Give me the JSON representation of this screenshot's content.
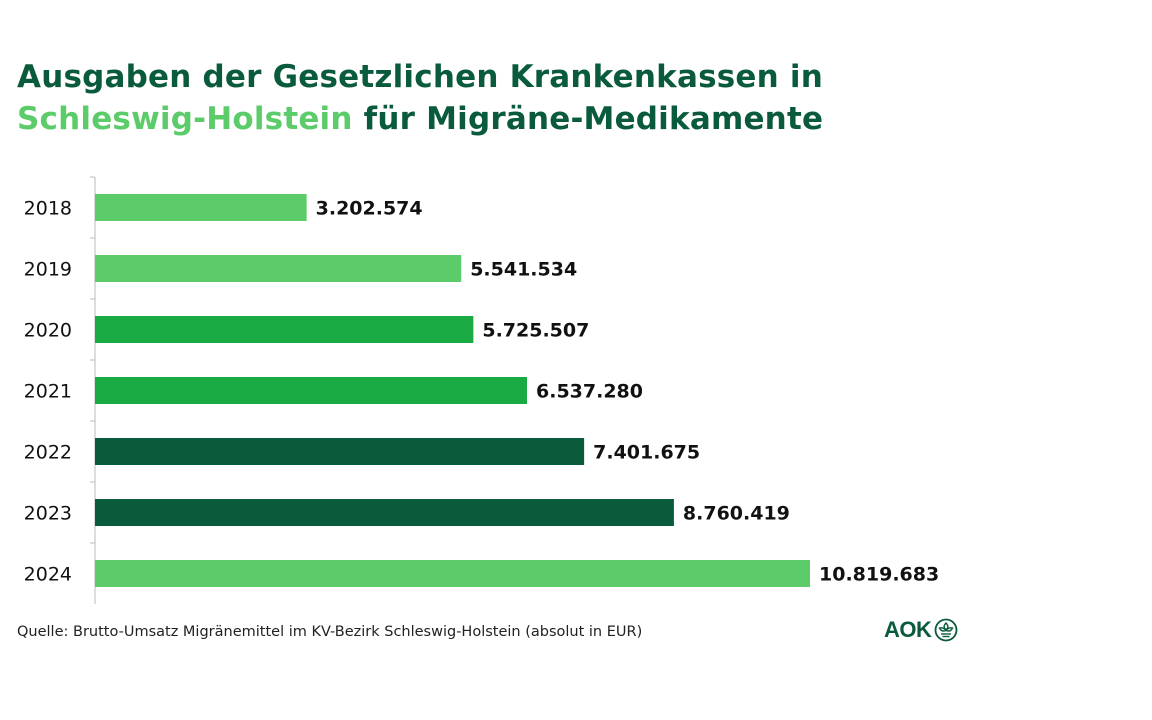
{
  "title": {
    "line1": "Ausgaben der Gesetzlichen Krankenkassen in",
    "line2_highlight": "Schleswig-Holstein",
    "line2_rest": " für Migräne-Medikamente"
  },
  "source": "Quelle: Brutto-Umsatz Migränemittel im KV-Bezirk Schleswig-Holstein (absolut in EUR)",
  "logo": {
    "text": "AOK",
    "icon": "aok-tree-icon"
  },
  "colors": {
    "title": "#0a5a3c",
    "title_highlight": "#5ccc6a",
    "light_green": "#5ccc6a",
    "medium_green": "#1aaa44",
    "dark_green": "#0a5a3c",
    "axis": "#bbbbbb",
    "label": "#111111"
  },
  "chart_data": {
    "type": "bar",
    "orientation": "horizontal",
    "categories": [
      "2018",
      "2019",
      "2020",
      "2021",
      "2022",
      "2023",
      "2024"
    ],
    "values": [
      3202574,
      5541534,
      5725507,
      6537280,
      7401675,
      8760419,
      10819683
    ],
    "value_labels": [
      "3.202.574",
      "5.541.534",
      "5.725.507",
      "6.537.280",
      "7.401.675",
      "8.760.419",
      "10.819.683"
    ],
    "bar_colors": [
      "#5ccc6a",
      "#5ccc6a",
      "#1aaa44",
      "#1aaa44",
      "#0a5a3c",
      "#0a5a3c",
      "#5ccc6a"
    ],
    "xlim": [
      0,
      10819683
    ],
    "grid": false,
    "legend": "none",
    "title": "",
    "xlabel": "",
    "ylabel": ""
  }
}
